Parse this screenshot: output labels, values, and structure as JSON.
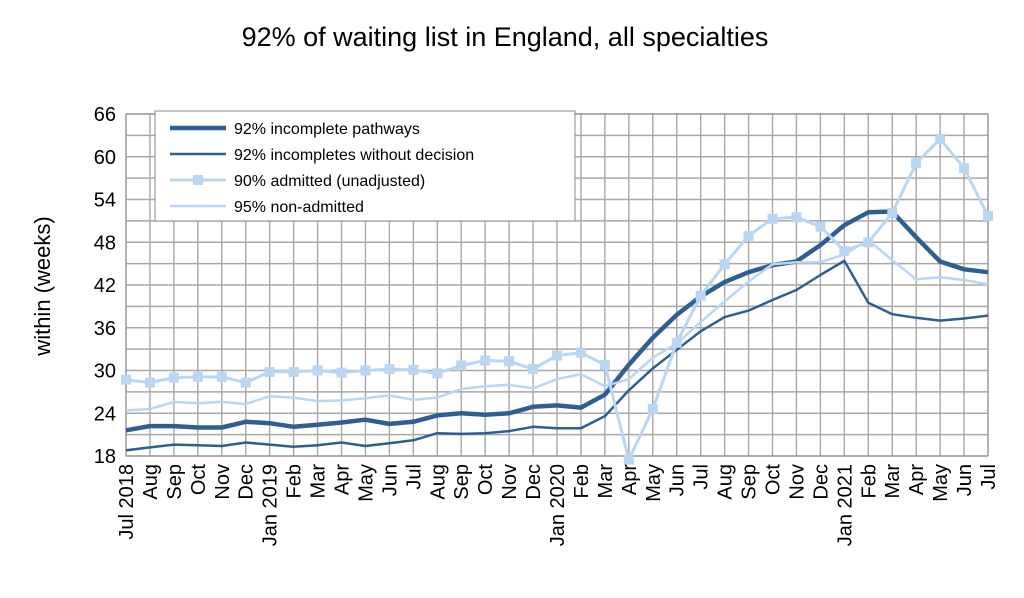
{
  "chart_data": {
    "type": "line",
    "title": "92% of waiting list in England, all specialties",
    "xlabel": "",
    "ylabel": "within  (weeks)",
    "ylim": [
      18,
      66
    ],
    "yticks": [
      18,
      24,
      30,
      36,
      42,
      48,
      54,
      60,
      66
    ],
    "grid": true,
    "legend_position": "top-left",
    "categories": [
      "Jul 2018",
      "Aug",
      "Sep",
      "Oct",
      "Nov",
      "Dec",
      "Jan 2019",
      "Feb",
      "Mar",
      "Apr",
      "May",
      "Jun",
      "Jul",
      "Aug",
      "Sep",
      "Oct",
      "Nov",
      "Dec",
      "Jan 2020",
      "Feb",
      "Mar",
      "Apr",
      "May",
      "Jun",
      "Jul",
      "Aug",
      "Sep",
      "Oct",
      "Nov",
      "Dec",
      "Jan 2021",
      "Feb",
      "Mar",
      "Apr",
      "May",
      "Jun",
      "Jul"
    ],
    "series": [
      {
        "name": "92% incomplete pathways",
        "color": "#2f5f92",
        "marker": "none",
        "values": [
          21.6,
          22.2,
          22.2,
          22.0,
          22.0,
          22.8,
          22.6,
          22.1,
          22.4,
          22.7,
          23.1,
          22.5,
          22.8,
          23.7,
          24.0,
          23.8,
          24.0,
          24.9,
          25.1,
          24.8,
          26.6,
          30.8,
          34.6,
          37.8,
          40.4,
          42.4,
          43.8,
          44.8,
          45.3,
          47.6,
          50.4,
          52.2,
          52.3,
          48.7,
          45.3,
          44.2,
          43.8
        ]
      },
      {
        "name": "92% incompletes without decision",
        "color": "#2f5f92",
        "marker": "none",
        "values": [
          18.8,
          19.2,
          19.6,
          19.5,
          19.4,
          19.9,
          19.6,
          19.3,
          19.5,
          19.9,
          19.4,
          19.8,
          20.2,
          21.2,
          21.1,
          21.2,
          21.5,
          22.1,
          21.9,
          21.9,
          23.6,
          27.2,
          30.3,
          32.9,
          35.5,
          37.5,
          38.4,
          39.9,
          41.3,
          43.4,
          45.4,
          39.5,
          37.9,
          37.4,
          37.0,
          37.3,
          37.7
        ]
      },
      {
        "name": "90% admitted (unadjusted)",
        "color": "#b9d6f2",
        "marker": "square",
        "values": [
          28.7,
          28.3,
          29.0,
          29.1,
          29.1,
          28.3,
          29.8,
          29.8,
          30.0,
          29.7,
          30.0,
          30.2,
          30.1,
          29.6,
          30.7,
          31.4,
          31.3,
          30.2,
          32.1,
          32.5,
          30.8,
          17.5,
          24.6,
          33.9,
          40.5,
          44.9,
          48.9,
          51.3,
          51.5,
          50.2,
          46.8,
          48.0,
          52.1,
          59.1,
          62.5,
          58.4,
          51.7
        ]
      },
      {
        "name": "95% non-admitted",
        "color": "#b9d6f2",
        "marker": "none",
        "values": [
          24.4,
          24.6,
          25.6,
          25.4,
          25.6,
          25.3,
          26.4,
          26.2,
          25.7,
          25.8,
          26.1,
          26.5,
          25.9,
          26.2,
          27.4,
          27.8,
          28.0,
          27.5,
          28.8,
          29.5,
          27.8,
          28.8,
          31.8,
          33.8,
          36.8,
          39.7,
          42.5,
          44.9,
          45.2,
          45.2,
          46.3,
          48.3,
          45.5,
          42.8,
          43.1,
          42.7,
          42.1
        ]
      }
    ]
  }
}
